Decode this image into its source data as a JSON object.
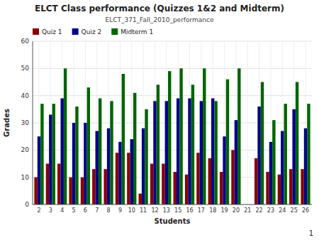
{
  "chart_data": {
    "type": "bar",
    "title": "ELCT Class performance (Quizzes 1&2  and Midterm)",
    "subtitle": "ELCT_371_Fall_2010_performance",
    "x_label": "Students",
    "y_label": "Grades",
    "categories": [
      "2",
      "3",
      "4",
      "5",
      "6",
      "7",
      "8",
      "9",
      "10",
      "11",
      "12",
      "13",
      "15",
      "16",
      "17",
      "18",
      "19",
      "20",
      "21",
      "22",
      "23",
      "24",
      "25",
      "26"
    ],
    "series": [
      {
        "name": "Quiz 1",
        "color": "#8B0000",
        "values": [
          10,
          15,
          15,
          10,
          10,
          13,
          13,
          19,
          19,
          4,
          15,
          15,
          12,
          11,
          19,
          17,
          12,
          20,
          0,
          17,
          12,
          11,
          13,
          13
        ]
      },
      {
        "name": "Quiz 2",
        "color": "#00008B",
        "values": [
          25,
          33,
          39,
          30,
          30,
          27,
          28,
          23,
          24,
          28,
          38,
          38,
          39,
          39,
          38,
          39,
          25,
          31,
          0,
          36,
          23,
          27,
          35,
          28
        ]
      },
      {
        "name": "Midterm 1",
        "color": "#006400",
        "values": [
          37,
          37,
          50,
          36,
          43,
          39,
          38,
          48,
          41,
          35,
          44,
          49,
          50,
          44,
          50,
          38,
          46,
          50,
          0,
          45,
          31,
          37,
          45,
          37
        ]
      }
    ],
    "ylim": [
      0,
      60
    ],
    "yticks": [
      0,
      10,
      20,
      30,
      40,
      50,
      60
    ],
    "grid": true,
    "legend": "top-left",
    "annotations": [
      "1"
    ]
  }
}
